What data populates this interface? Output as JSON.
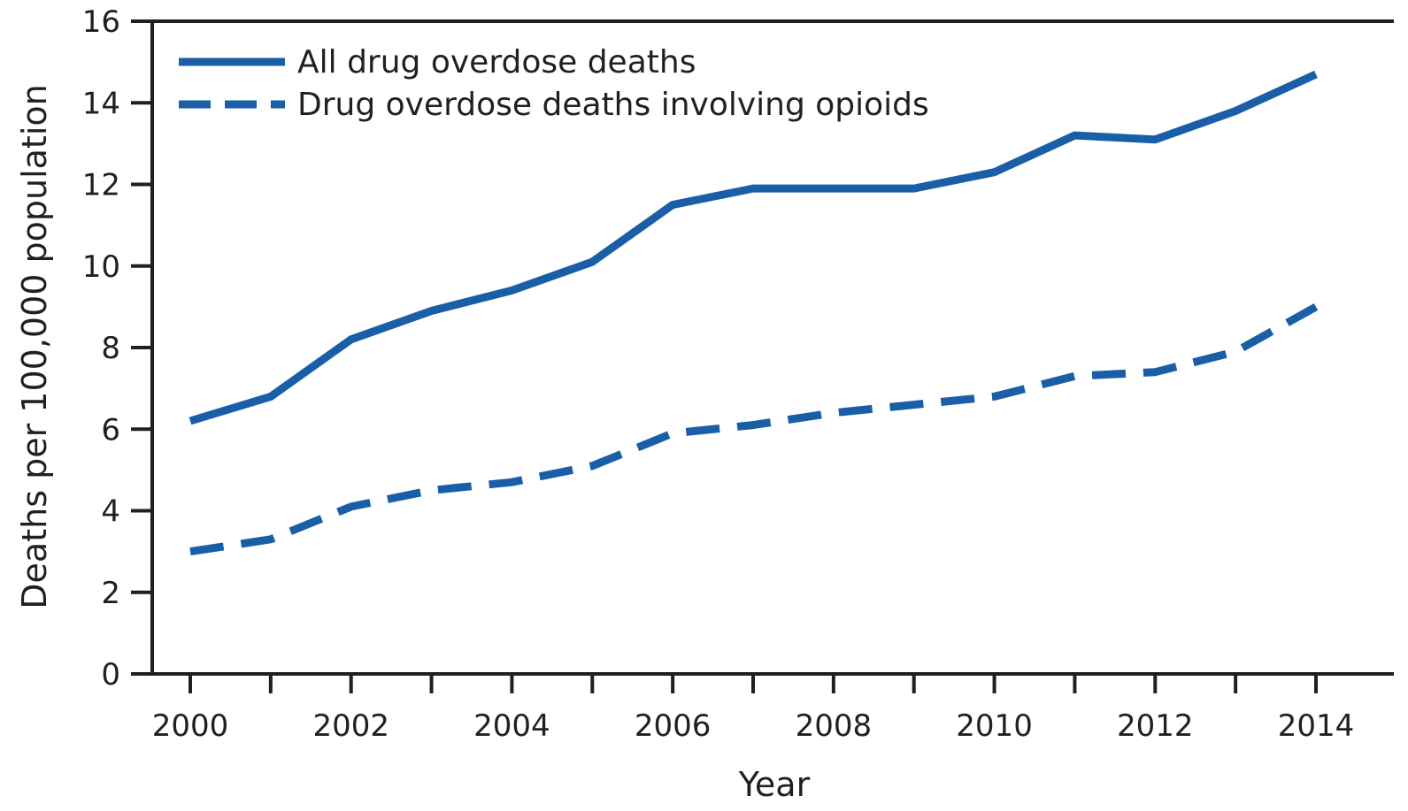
{
  "chart_data": {
    "type": "line",
    "title": "",
    "xlabel": "Year",
    "ylabel": "Deaths per 100,000 population",
    "xlim": [
      2000,
      2014
    ],
    "ylim": [
      0,
      16
    ],
    "x_ticks": [
      2000,
      2002,
      2004,
      2006,
      2008,
      2010,
      2012,
      2014
    ],
    "y_ticks": [
      0,
      2,
      4,
      6,
      8,
      10,
      12,
      14,
      16
    ],
    "grid": false,
    "legend_position": "top-left",
    "x": [
      2000,
      2001,
      2002,
      2003,
      2004,
      2005,
      2006,
      2007,
      2008,
      2009,
      2010,
      2011,
      2012,
      2013,
      2014
    ],
    "series": [
      {
        "name": "All drug overdose deaths",
        "line_style": "solid",
        "color": "#1a5ea8",
        "values": [
          6.2,
          6.8,
          8.2,
          8.9,
          9.4,
          10.1,
          11.5,
          11.9,
          11.9,
          11.9,
          12.3,
          13.2,
          13.1,
          13.8,
          14.7
        ]
      },
      {
        "name": "Drug overdose deaths involving opioids",
        "line_style": "dashed",
        "color": "#1a5ea8",
        "values": [
          3.0,
          3.3,
          4.1,
          4.5,
          4.7,
          5.1,
          5.9,
          6.1,
          6.4,
          6.6,
          6.8,
          7.3,
          7.4,
          7.9,
          9.0
        ]
      }
    ]
  }
}
